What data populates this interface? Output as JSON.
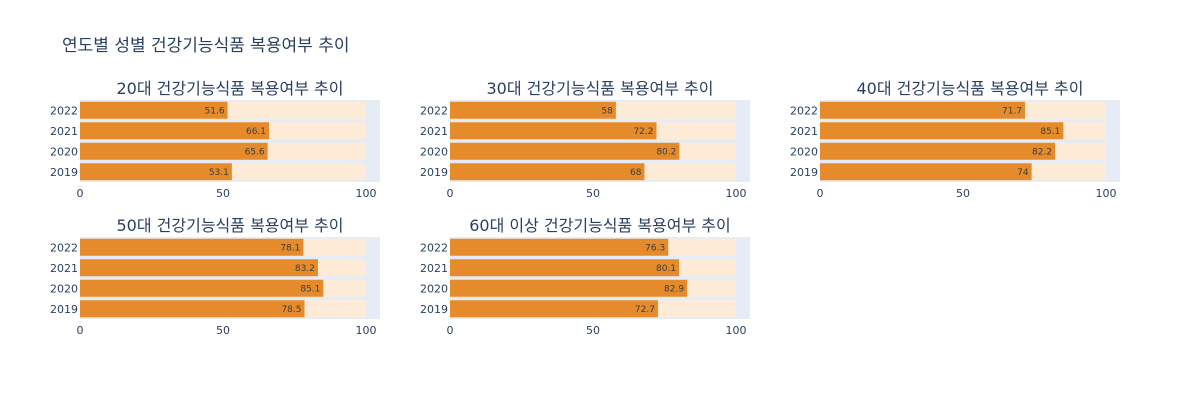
{
  "title": "연도별 성별 건강기능식품 복용여부 추이",
  "colors": {
    "bar": "#e58b2c",
    "track": "#fdebd7",
    "plot_bg": "#e5ecf6",
    "text": "#2a3f5f"
  },
  "chart_data": [
    {
      "type": "bar",
      "orientation": "horizontal",
      "title": "20대 건강기능식품 복용여부 추이",
      "categories": [
        "2019",
        "2020",
        "2021",
        "2022"
      ],
      "values": [
        53.1,
        65.6,
        66.1,
        51.6
      ],
      "xlim": [
        0,
        100
      ],
      "xticks": [
        0,
        50,
        100
      ]
    },
    {
      "type": "bar",
      "orientation": "horizontal",
      "title": "30대 건강기능식품 복용여부 추이",
      "categories": [
        "2019",
        "2020",
        "2021",
        "2022"
      ],
      "values": [
        68,
        80.2,
        72.2,
        58
      ],
      "xlim": [
        0,
        100
      ],
      "xticks": [
        0,
        50,
        100
      ]
    },
    {
      "type": "bar",
      "orientation": "horizontal",
      "title": "40대 건강기능식품 복용여부 추이",
      "categories": [
        "2019",
        "2020",
        "2021",
        "2022"
      ],
      "values": [
        74,
        82.2,
        85.1,
        71.7
      ],
      "xlim": [
        0,
        100
      ],
      "xticks": [
        0,
        50,
        100
      ]
    },
    {
      "type": "bar",
      "orientation": "horizontal",
      "title": "50대 건강기능식품 복용여부 추이",
      "categories": [
        "2019",
        "2020",
        "2021",
        "2022"
      ],
      "values": [
        78.5,
        85.1,
        83.2,
        78.1
      ],
      "xlim": [
        0,
        100
      ],
      "xticks": [
        0,
        50,
        100
      ]
    },
    {
      "type": "bar",
      "orientation": "horizontal",
      "title": "60대 이상 건강기능식품 복용여부 추이",
      "categories": [
        "2019",
        "2020",
        "2021",
        "2022"
      ],
      "values": [
        72.7,
        82.9,
        80.1,
        76.3
      ],
      "xlim": [
        0,
        100
      ],
      "xticks": [
        0,
        50,
        100
      ]
    }
  ]
}
